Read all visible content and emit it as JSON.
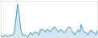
{
  "chart_data": {
    "type": "area",
    "x": [
      0,
      1,
      2,
      3,
      4,
      5,
      6,
      7,
      8,
      9,
      10,
      11,
      12,
      13,
      14,
      15,
      16,
      17,
      18,
      19,
      20,
      21,
      22,
      23,
      24,
      25,
      26,
      27,
      28,
      29,
      30,
      31,
      32,
      33,
      34,
      35,
      36,
      37,
      38,
      39,
      40,
      41,
      42,
      43,
      44,
      45,
      46,
      47,
      48,
      49,
      50,
      51,
      52,
      53,
      54,
      55,
      56,
      57,
      58,
      59
    ],
    "values": [
      3,
      2,
      3,
      3,
      2,
      3,
      3,
      3,
      4,
      9,
      15,
      11,
      5,
      3,
      3,
      3,
      2,
      3,
      4,
      3,
      4,
      4,
      4,
      3,
      5,
      5,
      5,
      4,
      5,
      5,
      4,
      5,
      6,
      6,
      5,
      4,
      5,
      5,
      4,
      4,
      5,
      6,
      6,
      5,
      4,
      3,
      4,
      5,
      4,
      7,
      5,
      4,
      4,
      3,
      4,
      5,
      4,
      4,
      3,
      5
    ],
    "color": "#4a9fc8",
    "xlim": [
      0,
      59
    ],
    "ylim": [
      2,
      16
    ],
    "tick_labels": false,
    "grid": false
  }
}
